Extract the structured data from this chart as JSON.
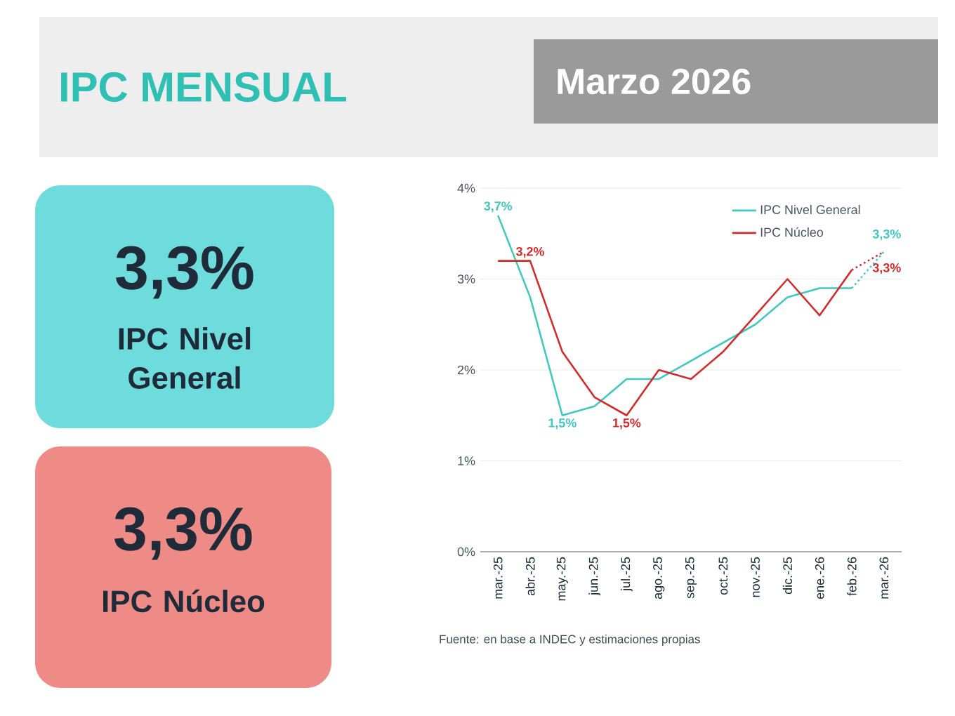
{
  "chart_data": {
    "type": "line",
    "title": "IPC MENSUAL",
    "subtitle": "Marzo 2026",
    "categories": [
      "mar.-25",
      "abr.-25",
      "may.-25",
      "jun.-25",
      "jul.-25",
      "ago.-25",
      "sep.-25",
      "oct.-25",
      "nov.-25",
      "dic.-25",
      "ene.-26",
      "feb.-26",
      "mar.-26"
    ],
    "series": [
      {
        "name": "IPC Nivel General",
        "color": "#3fc9c0",
        "values": [
          3.7,
          2.8,
          1.5,
          1.6,
          1.9,
          1.9,
          2.1,
          2.3,
          2.5,
          2.8,
          2.9,
          2.9,
          null
        ],
        "value_labels": [
          "3,7%",
          null,
          "1,5%",
          null,
          null,
          null,
          null,
          null,
          null,
          null,
          null,
          null,
          null
        ]
      },
      {
        "name": "IPC Núcleo",
        "color": "#d42a2a",
        "values": [
          3.2,
          3.2,
          2.2,
          1.7,
          1.5,
          2.0,
          1.9,
          2.2,
          2.6,
          3.0,
          2.6,
          3.1,
          null
        ],
        "value_labels": [
          null,
          "3,2%",
          null,
          null,
          "1,5%",
          null,
          null,
          null,
          null,
          null,
          null,
          null,
          null
        ]
      },
      {
        "color": "#3fc9c0",
        "line_style": "dotted",
        "values": [
          null,
          null,
          null,
          null,
          null,
          null,
          null,
          null,
          null,
          null,
          null,
          2.9,
          3.3
        ],
        "value_labels": [
          null,
          null,
          null,
          null,
          null,
          null,
          null,
          null,
          null,
          null,
          null,
          null,
          "3,3%"
        ]
      },
      {
        "color": "#d42a2a",
        "line_style": "dotted",
        "values": [
          null,
          null,
          null,
          null,
          null,
          null,
          null,
          null,
          null,
          null,
          null,
          3.1,
          3.3
        ],
        "value_labels": [
          null,
          null,
          null,
          null,
          null,
          null,
          null,
          null,
          null,
          null,
          null,
          null,
          "3,3%"
        ]
      }
    ],
    "ylim": [
      0,
      4
    ],
    "yticks": [
      {
        "value": 0,
        "label": "0%"
      },
      {
        "value": 1,
        "label": "1%"
      },
      {
        "value": 2,
        "label": "2%"
      },
      {
        "value": 3,
        "label": "3%"
      },
      {
        "value": 4,
        "label": "4%"
      }
    ],
    "grid": "y",
    "legend": "top right",
    "marker": "none",
    "annotations": [
      "3,3%",
      "IPC Nivel General",
      "3,3%",
      "IPC Núcleo",
      "Fuente: en base a INDEC y estimaciones propias"
    ]
  }
}
